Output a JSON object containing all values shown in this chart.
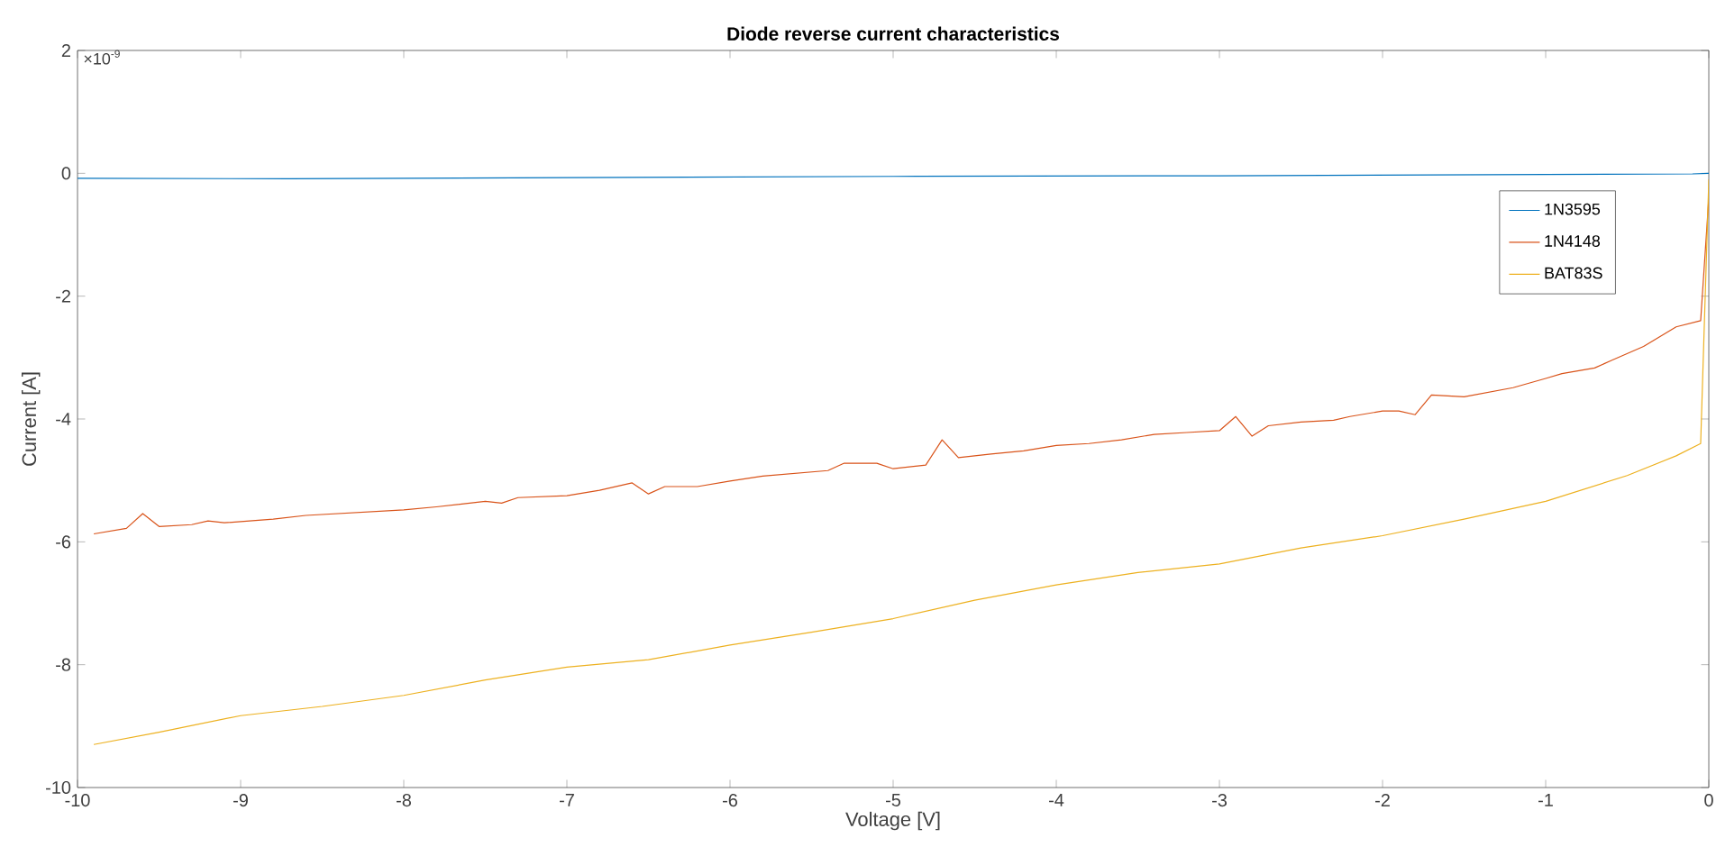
{
  "chart_data": {
    "type": "line",
    "title": "Diode reverse current characteristics",
    "xlabel": "Voltage [V]",
    "ylabel": "Current [A]",
    "annotations": [
      "×10$^{-9}$"
    ],
    "xlim": [
      -10,
      0
    ],
    "ylim": [
      -10,
      2
    ],
    "xticks": [
      -10,
      -9,
      -8,
      -7,
      -6,
      -5,
      -4,
      -3,
      -2,
      -1,
      0
    ],
    "yticks": [
      -10,
      -8,
      -6,
      -4,
      -2,
      0,
      2
    ],
    "legend": "top right",
    "grid": false,
    "marker": "none",
    "line_style": "solid",
    "series": [
      {
        "name": "1N3595",
        "color": "#0072bd",
        "x": [
          -10,
          -8.7,
          -7,
          -5,
          -3,
          -1,
          -0.1,
          0
        ],
        "values": [
          -0.08,
          -0.09,
          -0.07,
          -0.05,
          -0.04,
          -0.02,
          -0.01,
          0
        ]
      },
      {
        "name": "1N4148",
        "color": "#d95319",
        "x": [
          -9.9,
          -9.7,
          -9.6,
          -9.5,
          -9.3,
          -9.2,
          -9.1,
          -8.8,
          -8.6,
          -8.0,
          -7.8,
          -7.5,
          -7.4,
          -7.3,
          -7.0,
          -6.8,
          -6.6,
          -6.5,
          -6.4,
          -6.2,
          -6.0,
          -5.8,
          -5.4,
          -5.3,
          -5.1,
          -5.0,
          -4.8,
          -4.7,
          -4.6,
          -4.4,
          -4.2,
          -4.0,
          -3.8,
          -3.6,
          -3.4,
          -3.2,
          -3.0,
          -2.9,
          -2.8,
          -2.7,
          -2.5,
          -2.3,
          -2.2,
          -2.0,
          -1.9,
          -1.8,
          -1.7,
          -1.5,
          -1.2,
          -1.0,
          -0.9,
          -0.7,
          -0.6,
          -0.4,
          -0.2,
          -0.05,
          0
        ],
        "values": [
          -5.87,
          -5.78,
          -5.54,
          -5.75,
          -5.72,
          -5.66,
          -5.69,
          -5.63,
          -5.57,
          -5.48,
          -5.43,
          -5.34,
          -5.37,
          -5.28,
          -5.25,
          -5.16,
          -5.04,
          -5.22,
          -5.1,
          -5.1,
          -5.01,
          -4.93,
          -4.84,
          -4.72,
          -4.72,
          -4.81,
          -4.75,
          -4.34,
          -4.63,
          -4.57,
          -4.52,
          -4.43,
          -4.4,
          -4.34,
          -4.25,
          -4.22,
          -4.19,
          -3.96,
          -4.28,
          -4.11,
          -4.05,
          -4.02,
          -3.96,
          -3.87,
          -3.87,
          -3.93,
          -3.61,
          -3.64,
          -3.49,
          -3.34,
          -3.26,
          -3.17,
          -3.05,
          -2.82,
          -2.5,
          -2.4,
          -0.4
        ]
      },
      {
        "name": "BAT83S",
        "color": "#edb120",
        "x": [
          -9.9,
          -9.5,
          -9.0,
          -8.5,
          -8.0,
          -7.5,
          -7.0,
          -6.5,
          -6.0,
          -5.5,
          -5.0,
          -4.5,
          -4.0,
          -3.5,
          -3.0,
          -2.5,
          -2.0,
          -1.5,
          -1.0,
          -0.5,
          -0.2,
          -0.05,
          0
        ],
        "values": [
          -9.3,
          -9.1,
          -8.83,
          -8.68,
          -8.5,
          -8.25,
          -8.04,
          -7.92,
          -7.68,
          -7.47,
          -7.25,
          -6.95,
          -6.7,
          -6.5,
          -6.36,
          -6.1,
          -5.9,
          -5.63,
          -5.34,
          -4.92,
          -4.6,
          -4.4,
          -0.1
        ]
      }
    ]
  }
}
